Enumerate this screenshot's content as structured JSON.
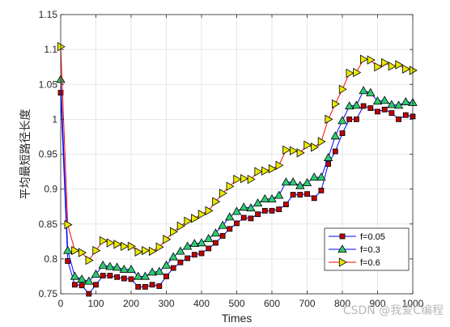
{
  "chart_data": {
    "type": "line",
    "title": "",
    "xlabel": "Times",
    "ylabel": "平均最短路径长度",
    "xlim": [
      0,
      1000
    ],
    "ylim": [
      0.75,
      1.15
    ],
    "xticks": [
      0,
      100,
      200,
      300,
      400,
      500,
      600,
      700,
      800,
      900,
      1000
    ],
    "yticks": [
      0.75,
      0.8,
      0.85,
      0.9,
      0.95,
      1,
      1.05,
      1.1,
      1.15
    ],
    "grid": true,
    "legend": "lower-right",
    "series": [
      {
        "name": "f=0.05",
        "color": "#0000ff",
        "marker": "square",
        "marker_color": "#c00000",
        "x": [
          0,
          20,
          40,
          60,
          80,
          100,
          120,
          140,
          160,
          180,
          200,
          220,
          240,
          260,
          280,
          300,
          320,
          340,
          360,
          380,
          400,
          420,
          440,
          460,
          480,
          500,
          520,
          540,
          560,
          580,
          600,
          620,
          640,
          660,
          680,
          700,
          720,
          740,
          760,
          780,
          800,
          820,
          840,
          860,
          880,
          900,
          920,
          940,
          960,
          980,
          1000
        ],
        "y": [
          1.038,
          0.797,
          0.763,
          0.762,
          0.75,
          0.763,
          0.776,
          0.776,
          0.774,
          0.772,
          0.771,
          0.76,
          0.76,
          0.763,
          0.761,
          0.775,
          0.787,
          0.795,
          0.801,
          0.806,
          0.808,
          0.815,
          0.823,
          0.833,
          0.843,
          0.851,
          0.859,
          0.858,
          0.864,
          0.869,
          0.869,
          0.871,
          0.878,
          0.892,
          0.892,
          0.893,
          0.887,
          0.898,
          0.936,
          0.954,
          0.98,
          1.0,
          1.0,
          1.019,
          1.016,
          1.011,
          1.014,
          1.009,
          1.0,
          1.006,
          1.004
        ]
      },
      {
        "name": "f=0.3",
        "color": "#0000ff",
        "marker": "triangle",
        "marker_color": "#2ecc71",
        "x": [
          0,
          20,
          40,
          60,
          80,
          100,
          120,
          140,
          160,
          180,
          200,
          220,
          240,
          260,
          280,
          300,
          320,
          340,
          360,
          380,
          400,
          420,
          440,
          460,
          480,
          500,
          520,
          540,
          560,
          580,
          600,
          620,
          640,
          660,
          680,
          700,
          720,
          740,
          760,
          780,
          800,
          820,
          840,
          860,
          880,
          900,
          920,
          940,
          960,
          980,
          1000
        ],
        "y": [
          1.057,
          0.812,
          0.775,
          0.771,
          0.768,
          0.778,
          0.791,
          0.789,
          0.788,
          0.785,
          0.785,
          0.775,
          0.775,
          0.781,
          0.782,
          0.791,
          0.803,
          0.811,
          0.818,
          0.822,
          0.823,
          0.829,
          0.837,
          0.848,
          0.86,
          0.868,
          0.874,
          0.873,
          0.88,
          0.886,
          0.886,
          0.891,
          0.91,
          0.91,
          0.905,
          0.909,
          0.917,
          0.917,
          0.945,
          0.976,
          0.998,
          1.019,
          1.02,
          1.041,
          1.038,
          1.026,
          1.027,
          1.021,
          1.02,
          1.025,
          1.024
        ]
      },
      {
        "name": "f=0.6",
        "color": "#ff0000",
        "marker": "triangle-right",
        "marker_color": "#e8e800",
        "x": [
          0,
          20,
          40,
          60,
          80,
          100,
          120,
          140,
          160,
          180,
          200,
          220,
          240,
          260,
          280,
          300,
          320,
          340,
          360,
          380,
          400,
          420,
          440,
          460,
          480,
          500,
          520,
          540,
          560,
          580,
          600,
          620,
          640,
          660,
          680,
          700,
          720,
          740,
          760,
          780,
          800,
          820,
          840,
          860,
          880,
          900,
          920,
          940,
          960,
          980,
          1000
        ],
        "y": [
          1.104,
          0.849,
          0.812,
          0.809,
          0.798,
          0.812,
          0.826,
          0.823,
          0.821,
          0.818,
          0.818,
          0.81,
          0.812,
          0.811,
          0.817,
          0.828,
          0.839,
          0.847,
          0.854,
          0.858,
          0.864,
          0.869,
          0.882,
          0.894,
          0.904,
          0.914,
          0.915,
          0.914,
          0.925,
          0.926,
          0.929,
          0.934,
          0.956,
          0.955,
          0.952,
          0.963,
          0.96,
          0.968,
          1.0,
          1.022,
          1.043,
          1.066,
          1.067,
          1.086,
          1.085,
          1.075,
          1.081,
          1.076,
          1.078,
          1.072,
          1.07
        ]
      }
    ]
  },
  "watermark": "CSDN @我爱C编程"
}
